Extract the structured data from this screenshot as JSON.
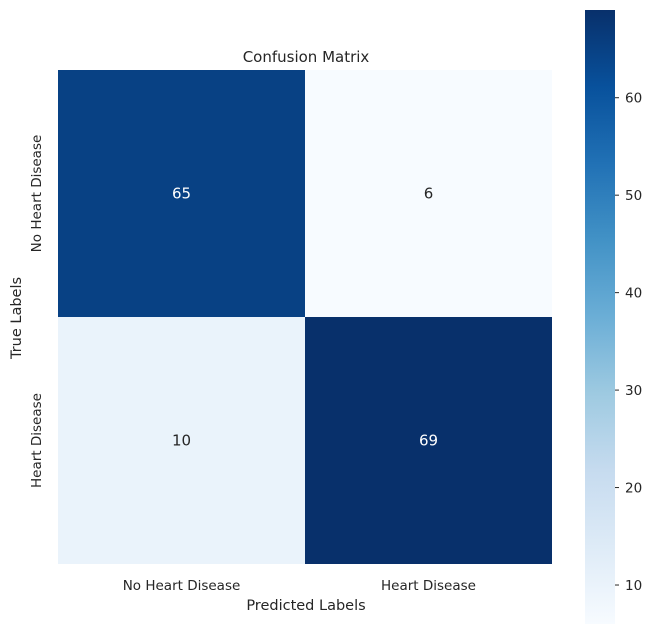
{
  "chart_data": {
    "type": "heatmap",
    "title": "Confusion Matrix",
    "xlabel": "Predicted Labels",
    "ylabel": "True Labels",
    "x_categories": [
      "No Heart Disease",
      "Heart Disease"
    ],
    "y_categories": [
      "No Heart Disease",
      "Heart Disease"
    ],
    "values": [
      [
        65,
        6
      ],
      [
        10,
        69
      ]
    ],
    "colormap": "Blues",
    "colorbar": {
      "range": [
        6,
        69
      ],
      "ticks": [
        10,
        20,
        30,
        40,
        50,
        60
      ],
      "tick_labels": [
        "10",
        "20",
        "30",
        "40",
        "50",
        "60"
      ]
    },
    "grid": false,
    "legend": "colorbar-right"
  }
}
